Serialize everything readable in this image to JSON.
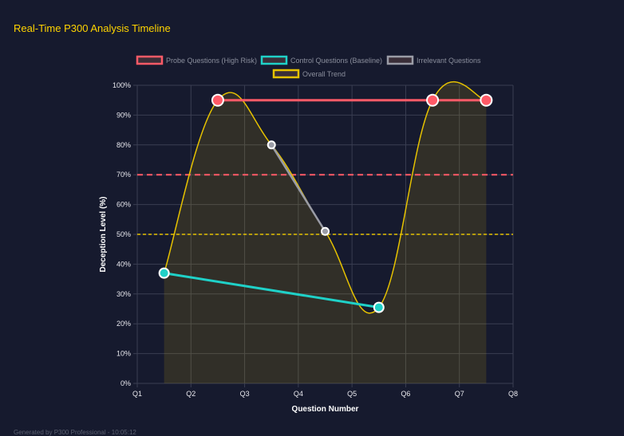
{
  "title": "Real-Time P300 Analysis Timeline",
  "footer": "Generated by P300 Professional - 10:05:12",
  "chart_data": {
    "type": "line",
    "xlabel": "Question Number",
    "ylabel": "Deception Level (%)",
    "x_ticks": [
      "Q1",
      "Q2",
      "Q3",
      "Q4",
      "Q5",
      "Q6",
      "Q7",
      "Q8"
    ],
    "y_ticks": [
      "0%",
      "10%",
      "20%",
      "30%",
      "40%",
      "50%",
      "60%",
      "70%",
      "80%",
      "90%",
      "100%"
    ],
    "ylim": [
      0,
      100
    ],
    "grid": true,
    "legend_placement": "top",
    "series": [
      {
        "name": "Probe Questions (High Risk)",
        "color": "#ff5a67",
        "x": [
          2.5,
          6.5,
          7.5
        ],
        "values": [
          95,
          95,
          95
        ]
      },
      {
        "name": "Control Questions (Baseline)",
        "color": "#1fd1c8",
        "x": [
          1.5,
          5.5
        ],
        "values": [
          37,
          25.5
        ]
      },
      {
        "name": "Irrelevant Questions",
        "color": "#9a9ca6",
        "x": [
          3.5,
          4.5
        ],
        "values": [
          80,
          51
        ]
      },
      {
        "name": "Overall Trend",
        "color": "#e6c200",
        "x": [
          1.5,
          2.5,
          3.5,
          4.5,
          5.5,
          6.5,
          7.5
        ],
        "values": [
          37,
          95,
          80,
          51,
          25.5,
          95,
          95
        ],
        "fill": true
      }
    ],
    "threshold_lines": [
      {
        "value": 70,
        "color": "#ff5a67",
        "style": "dashed"
      },
      {
        "value": 50,
        "color": "#e6c200",
        "style": "dashed"
      }
    ]
  }
}
